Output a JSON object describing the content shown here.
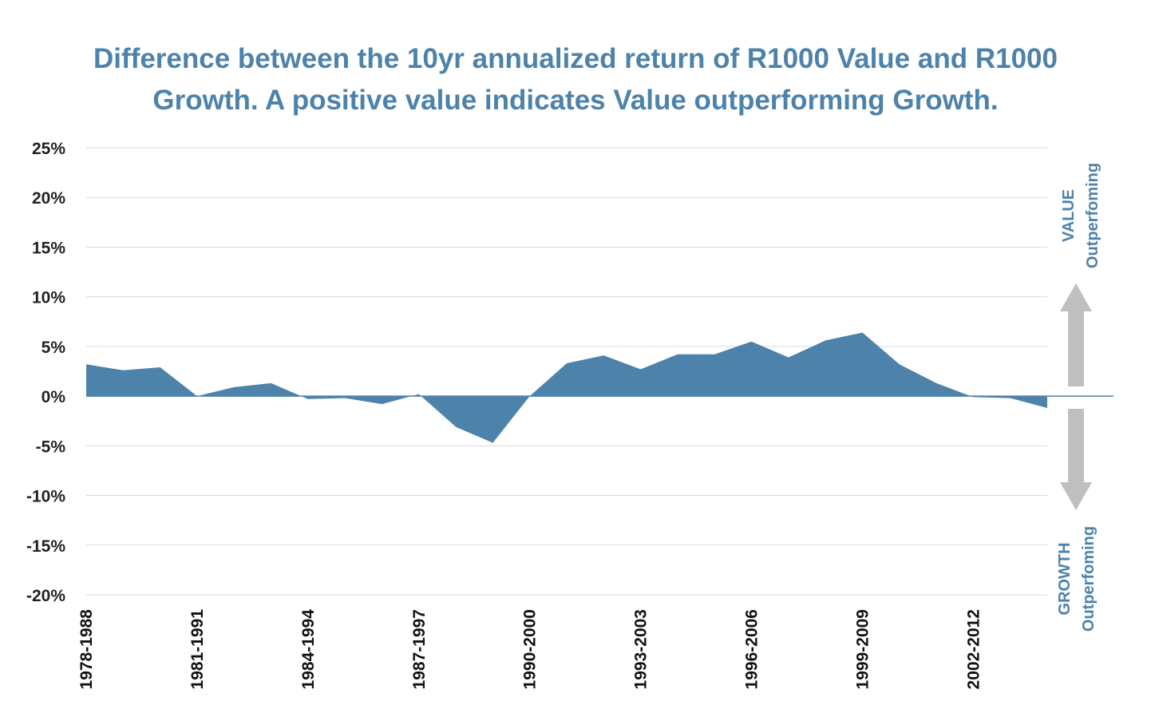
{
  "colors": {
    "series": "#4d82aa",
    "title": "#4d82aa",
    "grid": "#d9d9d9",
    "arrow": "#bfbfbf",
    "side_label": "#4d82aa"
  },
  "chart_data": {
    "type": "area",
    "title_lines": [
      "Difference between the 10yr annualized return of R1000 Value and R1000",
      "Growth. A positive value indicates Value outperforming Growth."
    ],
    "xlabel": "",
    "ylabel": "",
    "ylim": [
      -20,
      25
    ],
    "yticks": [
      25,
      20,
      15,
      10,
      5,
      0,
      -5,
      -10,
      -15,
      -20
    ],
    "ytick_labels": [
      "25%",
      "20%",
      "15%",
      "10%",
      "5%",
      "0%",
      "-5%",
      "-10%",
      "-15%",
      "-20%"
    ],
    "grid": true,
    "x": [
      "1978-1988",
      "1979-1989",
      "1980-1990",
      "1981-1991",
      "1982-1992",
      "1983-1993",
      "1984-1994",
      "1985-1995",
      "1986-1996",
      "1987-1997",
      "1988-1998",
      "1989-1999",
      "1990-2000",
      "1991-2001",
      "1992-2002",
      "1993-2003",
      "1994-2004",
      "1995-2005",
      "1996-2006",
      "1997-2007",
      "1998-2008",
      "1999-2009",
      "2000-2010",
      "2001-2011",
      "2002-2012",
      "2003-2013",
      "2004-2014"
    ],
    "xtick_labels": [
      "1978-1988",
      "1981-1991",
      "1984-1994",
      "1987-1997",
      "1990-2000",
      "1993-2003",
      "1996-2006",
      "1999-2009",
      "2002-2012"
    ],
    "series": [
      {
        "values": [
          3.2,
          2.6,
          2.9,
          0.0,
          0.9,
          1.3,
          -0.3,
          -0.2,
          -0.8,
          0.2,
          -3.1,
          -4.7,
          0.0,
          3.3,
          4.1,
          2.7,
          4.2,
          4.2,
          5.5,
          3.9,
          5.6,
          6.4,
          3.2,
          1.3,
          -0.1,
          -0.2,
          -1.2
        ]
      }
    ],
    "annotations": {
      "value_label": [
        "VALUE",
        "Outperfoming"
      ],
      "growth_label": [
        "GROWTH",
        "Outperfoming"
      ]
    }
  }
}
